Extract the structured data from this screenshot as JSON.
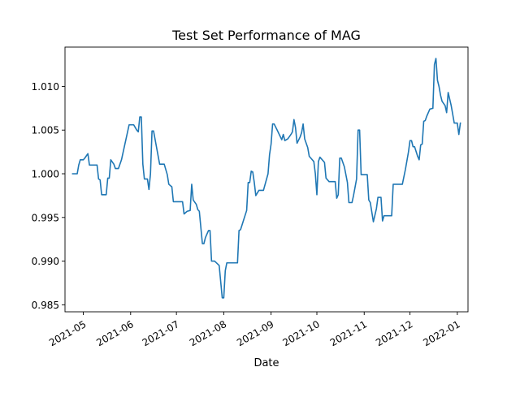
{
  "chart_data": {
    "type": "line",
    "title": "Test Set Performance of MAG",
    "xlabel": "Date",
    "ylabel": "",
    "x_ticks": [
      "2021-05",
      "2021-06",
      "2021-07",
      "2021-08",
      "2021-09",
      "2021-10",
      "2021-11",
      "2021-12",
      "2022-01"
    ],
    "y_ticks": [
      "0.985",
      "0.990",
      "0.995",
      "1.000",
      "1.005",
      "1.010"
    ],
    "xlim": [
      "2021-04-19",
      "2022-01-08"
    ],
    "ylim": [
      0.9842,
      1.0145
    ],
    "grid": false,
    "series": [
      {
        "color": "#1f77b4",
        "points": [
          [
            "2021-04-24",
            1.0
          ],
          [
            "2021-04-27",
            1.0
          ],
          [
            "2021-04-28",
            1.001
          ],
          [
            "2021-04-29",
            1.0016
          ],
          [
            "2021-05-01",
            1.0016
          ],
          [
            "2021-05-02",
            1.0018
          ],
          [
            "2021-05-04",
            1.0023
          ],
          [
            "2021-05-05",
            1.001
          ],
          [
            "2021-05-10",
            1.001
          ],
          [
            "2021-05-11",
            0.9994
          ],
          [
            "2021-05-12",
            0.9993
          ],
          [
            "2021-05-13",
            0.9976
          ],
          [
            "2021-05-16",
            0.9976
          ],
          [
            "2021-05-17",
            0.9995
          ],
          [
            "2021-05-18",
            0.9995
          ],
          [
            "2021-05-19",
            1.0016
          ],
          [
            "2021-05-21",
            1.0011
          ],
          [
            "2021-05-22",
            1.0006
          ],
          [
            "2021-05-24",
            1.0006
          ],
          [
            "2021-05-26",
            1.0016
          ],
          [
            "2021-05-28",
            1.0032
          ],
          [
            "2021-05-31",
            1.0056
          ],
          [
            "2021-06-03",
            1.0056
          ],
          [
            "2021-06-05",
            1.005
          ],
          [
            "2021-06-06",
            1.0048
          ],
          [
            "2021-06-07",
            1.0065
          ],
          [
            "2021-06-08",
            1.0065
          ],
          [
            "2021-06-09",
            1.0011
          ],
          [
            "2021-06-10",
            0.9994
          ],
          [
            "2021-06-12",
            0.9994
          ],
          [
            "2021-06-13",
            0.9982
          ],
          [
            "2021-06-14",
            1.0
          ],
          [
            "2021-06-15",
            1.0049
          ],
          [
            "2021-06-16",
            1.0049
          ],
          [
            "2021-06-18",
            1.003
          ],
          [
            "2021-06-20",
            1.0011
          ],
          [
            "2021-06-23",
            1.0011
          ],
          [
            "2021-06-25",
            0.9999
          ],
          [
            "2021-06-26",
            0.9988
          ],
          [
            "2021-06-28",
            0.9985
          ],
          [
            "2021-06-29",
            0.9968
          ],
          [
            "2021-07-05",
            0.9968
          ],
          [
            "2021-07-06",
            0.9954
          ],
          [
            "2021-07-08",
            0.9957
          ],
          [
            "2021-07-10",
            0.9958
          ],
          [
            "2021-07-11",
            0.9988
          ],
          [
            "2021-07-12",
            0.997
          ],
          [
            "2021-07-14",
            0.9965
          ],
          [
            "2021-07-15",
            0.9959
          ],
          [
            "2021-07-16",
            0.9957
          ],
          [
            "2021-07-18",
            0.992
          ],
          [
            "2021-07-19",
            0.992
          ],
          [
            "2021-07-20",
            0.9927
          ],
          [
            "2021-07-22",
            0.9935
          ],
          [
            "2021-07-23",
            0.9935
          ],
          [
            "2021-07-24",
            0.99
          ],
          [
            "2021-07-26",
            0.99
          ],
          [
            "2021-07-29",
            0.9895
          ],
          [
            "2021-07-31",
            0.9858
          ],
          [
            "2021-08-01",
            0.9858
          ],
          [
            "2021-08-02",
            0.9889
          ],
          [
            "2021-08-03",
            0.9898
          ],
          [
            "2021-08-05",
            0.9898
          ],
          [
            "2021-08-10",
            0.9898
          ],
          [
            "2021-08-11",
            0.9935
          ],
          [
            "2021-08-12",
            0.9936
          ],
          [
            "2021-08-14",
            0.9947
          ],
          [
            "2021-08-16",
            0.9958
          ],
          [
            "2021-08-17",
            0.999
          ],
          [
            "2021-08-18",
            0.999
          ],
          [
            "2021-08-19",
            1.0003
          ],
          [
            "2021-08-20",
            1.0002
          ],
          [
            "2021-08-21",
            0.999
          ],
          [
            "2021-08-22",
            0.9975
          ],
          [
            "2021-08-24",
            0.9981
          ],
          [
            "2021-08-27",
            0.9981
          ],
          [
            "2021-08-30",
            1.0
          ],
          [
            "2021-08-31",
            1.0022
          ],
          [
            "2021-09-01",
            1.0034
          ],
          [
            "2021-09-02",
            1.0057
          ],
          [
            "2021-09-03",
            1.0057
          ],
          [
            "2021-09-05",
            1.005
          ],
          [
            "2021-09-08",
            1.0039
          ],
          [
            "2021-09-09",
            1.0045
          ],
          [
            "2021-09-10",
            1.0038
          ],
          [
            "2021-09-12",
            1.004
          ],
          [
            "2021-09-14",
            1.0045
          ],
          [
            "2021-09-15",
            1.0048
          ],
          [
            "2021-09-16",
            1.0062
          ],
          [
            "2021-09-17",
            1.0053
          ],
          [
            "2021-09-18",
            1.0035
          ],
          [
            "2021-09-20",
            1.0042
          ],
          [
            "2021-09-21",
            1.0047
          ],
          [
            "2021-09-22",
            1.0057
          ],
          [
            "2021-09-23",
            1.004
          ],
          [
            "2021-09-25",
            1.003
          ],
          [
            "2021-09-26",
            1.002
          ],
          [
            "2021-09-29",
            1.0014
          ],
          [
            "2021-09-30",
            1.0
          ],
          [
            "2021-10-01",
            0.9976
          ],
          [
            "2021-10-02",
            1.0014
          ],
          [
            "2021-10-03",
            1.0019
          ],
          [
            "2021-10-06",
            1.0013
          ],
          [
            "2021-10-07",
            0.9995
          ],
          [
            "2021-10-09",
            0.9991
          ],
          [
            "2021-10-13",
            0.9991
          ],
          [
            "2021-10-14",
            0.9972
          ],
          [
            "2021-10-15",
            0.9976
          ],
          [
            "2021-10-16",
            1.0018
          ],
          [
            "2021-10-17",
            1.0018
          ],
          [
            "2021-10-19",
            1.0008
          ],
          [
            "2021-10-21",
            0.999
          ],
          [
            "2021-10-22",
            0.9967
          ],
          [
            "2021-10-24",
            0.9967
          ],
          [
            "2021-10-25",
            0.9975
          ],
          [
            "2021-10-27",
            0.9994
          ],
          [
            "2021-10-28",
            1.005
          ],
          [
            "2021-10-29",
            1.005
          ],
          [
            "2021-10-30",
            0.9999
          ],
          [
            "2021-11-03",
            0.9999
          ],
          [
            "2021-11-04",
            0.997
          ],
          [
            "2021-11-05",
            0.9967
          ],
          [
            "2021-11-07",
            0.9945
          ],
          [
            "2021-11-09",
            0.996
          ],
          [
            "2021-11-10",
            0.9973
          ],
          [
            "2021-11-12",
            0.9973
          ],
          [
            "2021-11-13",
            0.9946
          ],
          [
            "2021-11-14",
            0.9952
          ],
          [
            "2021-11-19",
            0.9952
          ],
          [
            "2021-11-20",
            0.9988
          ],
          [
            "2021-11-26",
            0.9988
          ],
          [
            "2021-11-28",
            1.0005
          ],
          [
            "2021-11-30",
            1.0025
          ],
          [
            "2021-12-01",
            1.0038
          ],
          [
            "2021-12-02",
            1.0038
          ],
          [
            "2021-12-03",
            1.0031
          ],
          [
            "2021-12-04",
            1.0031
          ],
          [
            "2021-12-06",
            1.002
          ],
          [
            "2021-12-07",
            1.0016
          ],
          [
            "2021-12-08",
            1.0033
          ],
          [
            "2021-12-09",
            1.0034
          ],
          [
            "2021-12-10",
            1.006
          ],
          [
            "2021-12-11",
            1.0061
          ],
          [
            "2021-12-12",
            1.0066
          ],
          [
            "2021-12-14",
            1.0074
          ],
          [
            "2021-12-16",
            1.0075
          ],
          [
            "2021-12-17",
            1.0125
          ],
          [
            "2021-12-18",
            1.0132
          ],
          [
            "2021-12-19",
            1.0107
          ],
          [
            "2021-12-20",
            1.01
          ],
          [
            "2021-12-21",
            1.009
          ],
          [
            "2021-12-22",
            1.0083
          ],
          [
            "2021-12-24",
            1.0078
          ],
          [
            "2021-12-25",
            1.007
          ],
          [
            "2021-12-26",
            1.0093
          ],
          [
            "2021-12-28",
            1.0078
          ],
          [
            "2021-12-30",
            1.0058
          ],
          [
            "2022-01-01",
            1.0058
          ],
          [
            "2022-01-02",
            1.0045
          ],
          [
            "2022-01-03",
            1.0058
          ]
        ]
      }
    ]
  }
}
